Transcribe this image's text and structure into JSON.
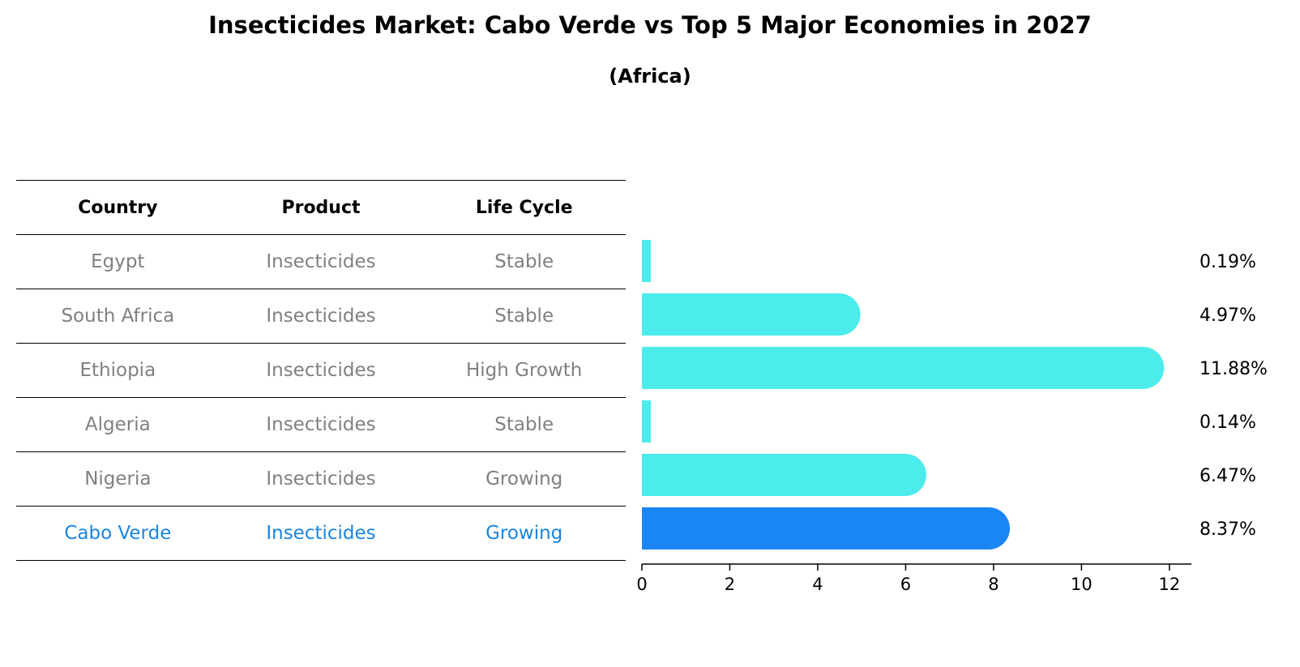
{
  "title": "Insecticides Market: Cabo Verde vs Top 5 Major Economies in 2027",
  "subtitle": "(Africa)",
  "table": {
    "headers": [
      "Country",
      "Product",
      "Life Cycle"
    ],
    "rows": [
      {
        "country": "Egypt",
        "product": "Insecticides",
        "life_cycle": "Stable"
      },
      {
        "country": "South Africa",
        "product": "Insecticides",
        "life_cycle": "Stable"
      },
      {
        "country": "Ethiopia",
        "product": "Insecticides",
        "life_cycle": "High Growth"
      },
      {
        "country": "Algeria",
        "product": "Insecticides",
        "life_cycle": "Stable"
      },
      {
        "country": "Nigeria",
        "product": "Insecticides",
        "life_cycle": "Growing"
      },
      {
        "country": "Cabo Verde",
        "product": "Insecticides",
        "life_cycle": "Growing"
      }
    ]
  },
  "chart_data": {
    "type": "bar",
    "orientation": "horizontal",
    "categories": [
      "Egypt",
      "South Africa",
      "Ethiopia",
      "Algeria",
      "Nigeria",
      "Cabo Verde"
    ],
    "values": [
      0.19,
      4.97,
      11.88,
      0.14,
      6.47,
      8.37
    ],
    "value_labels": [
      "0.19%",
      "4.97%",
      "11.88%",
      "0.14%",
      "6.47%",
      "8.37%"
    ],
    "highlight": "Cabo Verde",
    "xlim": [
      0,
      12.5
    ],
    "xticks": [
      0,
      2,
      4,
      6,
      8,
      10,
      12
    ],
    "grid": false,
    "colors": {
      "default": "#4beceb",
      "highlight": "#1a85f5"
    }
  }
}
